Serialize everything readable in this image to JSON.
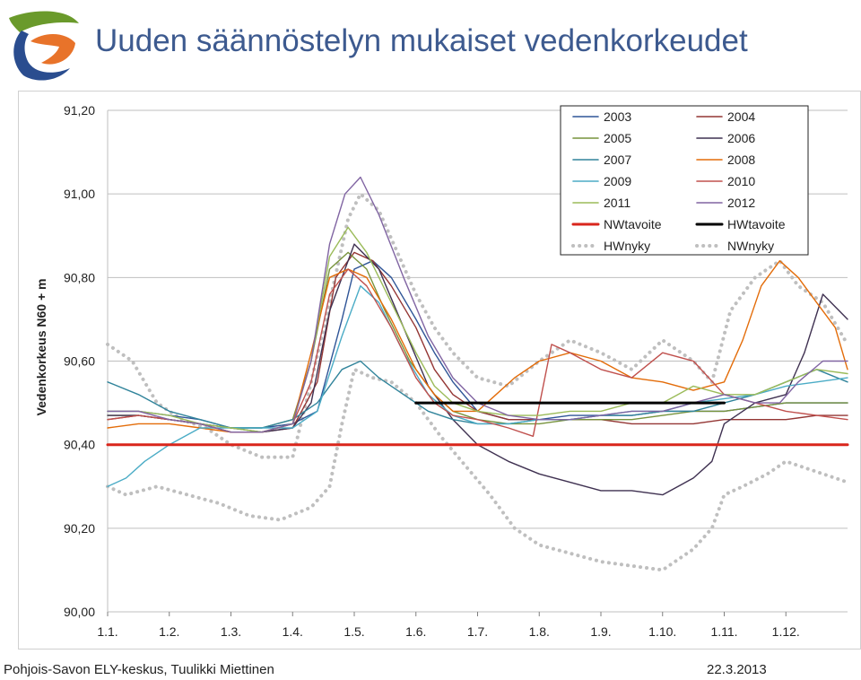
{
  "header": {
    "title": "Uuden säännöstelyn mukaiset vedenkorkeudet"
  },
  "footer": {
    "left": "Pohjois-Savon ELY-keskus, Tuulikki Miettinen",
    "right": "22.3.2013"
  },
  "logo": {
    "icon": "ely-logo-icon",
    "colors": [
      "#6a9a2b",
      "#e8732a",
      "#2a4d8f"
    ]
  },
  "chart_data": {
    "type": "line",
    "ylabel": "Vedenkorkeus N60 + m",
    "ylim": [
      90.0,
      91.2
    ],
    "yticks": [
      "90,00",
      "90,20",
      "90,40",
      "90,60",
      "90,80",
      "91,00",
      "91,20"
    ],
    "ytick_values": [
      90.0,
      90.2,
      90.4,
      90.6,
      90.8,
      91.0,
      91.2
    ],
    "xlim": [
      1,
      13
    ],
    "xticks": [
      "1.1.",
      "1.2.",
      "1.3.",
      "1.4.",
      "1.5.",
      "1.6.",
      "1.7.",
      "1.8.",
      "1.9.",
      "1.10.",
      "1.11.",
      "1.12."
    ],
    "xtick_values": [
      1,
      2,
      3,
      4,
      5,
      6,
      7,
      8,
      9,
      10,
      11,
      12
    ],
    "grid": true,
    "legend_position": "top-right",
    "series": [
      {
        "name": "2003",
        "color": "#2f5597",
        "style": "solid",
        "x": [
          1,
          1.5,
          2,
          2.5,
          3,
          3.5,
          4,
          4.4,
          4.8,
          5,
          5.3,
          5.6,
          6,
          6.3,
          6.6,
          7,
          7.5,
          8,
          8.5,
          9,
          9.5,
          10,
          10.5,
          11,
          11.5,
          12,
          12.5,
          13
        ],
        "y": [
          90.48,
          90.48,
          90.47,
          90.46,
          90.44,
          90.44,
          90.45,
          90.48,
          90.7,
          90.82,
          90.84,
          90.8,
          90.7,
          90.62,
          90.55,
          90.48,
          90.46,
          90.46,
          90.47,
          90.47,
          90.47,
          90.48,
          90.48,
          90.48,
          90.49,
          90.5,
          90.5,
          90.5
        ]
      },
      {
        "name": "2004",
        "color": "#943634",
        "style": "solid",
        "x": [
          1,
          1.5,
          2,
          2.5,
          3,
          3.5,
          4,
          4.4,
          4.7,
          5,
          5.3,
          5.6,
          6,
          6.3,
          6.6,
          7,
          7.5,
          8,
          8.5,
          9,
          9.5,
          10,
          10.5,
          11,
          11.5,
          12,
          12.5,
          13
        ],
        "y": [
          90.46,
          90.47,
          90.46,
          90.45,
          90.43,
          90.43,
          90.44,
          90.55,
          90.8,
          90.86,
          90.84,
          90.78,
          90.68,
          90.58,
          90.52,
          90.48,
          90.46,
          90.46,
          90.46,
          90.46,
          90.45,
          90.45,
          90.45,
          90.46,
          90.46,
          90.46,
          90.47,
          90.47
        ]
      },
      {
        "name": "2005",
        "color": "#77933c",
        "style": "solid",
        "x": [
          1,
          1.5,
          2,
          2.5,
          3,
          3.5,
          4,
          4.3,
          4.6,
          4.9,
          5.2,
          5.5,
          5.9,
          6.3,
          6.6,
          7,
          7.5,
          8,
          8.5,
          9,
          9.5,
          10,
          10.5,
          11,
          11.5,
          12,
          12.5,
          13
        ],
        "y": [
          90.47,
          90.47,
          90.46,
          90.45,
          90.44,
          90.44,
          90.46,
          90.6,
          90.82,
          90.86,
          90.82,
          90.72,
          90.6,
          90.52,
          90.48,
          90.46,
          90.45,
          90.45,
          90.46,
          90.46,
          90.46,
          90.47,
          90.48,
          90.48,
          90.49,
          90.5,
          90.5,
          90.5
        ]
      },
      {
        "name": "2006",
        "color": "#3f3151",
        "style": "solid",
        "x": [
          1,
          1.5,
          2,
          2.5,
          3,
          3.5,
          4,
          4.3,
          4.6,
          5,
          5.4,
          5.8,
          6.2,
          6.6,
          7,
          7.5,
          8,
          8.5,
          9,
          9.5,
          10,
          10.5,
          10.8,
          11,
          11.5,
          12,
          12.3,
          12.6,
          13
        ],
        "y": [
          90.47,
          90.47,
          90.46,
          90.45,
          90.44,
          90.43,
          90.44,
          90.5,
          90.72,
          90.88,
          90.82,
          90.68,
          90.54,
          90.46,
          90.4,
          90.36,
          90.33,
          90.31,
          90.29,
          90.29,
          90.28,
          90.32,
          90.36,
          90.45,
          90.5,
          90.52,
          90.62,
          90.76,
          90.7
        ]
      },
      {
        "name": "2007",
        "color": "#31849b",
        "style": "solid",
        "x": [
          1,
          1.5,
          2,
          2.5,
          3,
          3.5,
          4,
          4.4,
          4.8,
          5.1,
          5.4,
          5.8,
          6.2,
          6.6,
          7,
          7.5,
          8,
          8.5,
          9,
          9.5,
          10,
          10.5,
          11,
          11.5,
          12,
          12.5,
          13
        ],
        "y": [
          90.55,
          90.52,
          90.48,
          90.46,
          90.44,
          90.44,
          90.46,
          90.5,
          90.58,
          90.6,
          90.56,
          90.52,
          90.48,
          90.46,
          90.45,
          90.45,
          90.46,
          90.46,
          90.47,
          90.47,
          90.48,
          90.48,
          90.5,
          90.52,
          90.55,
          90.58,
          90.55
        ]
      },
      {
        "name": "2008",
        "color": "#e36c09",
        "style": "solid",
        "x": [
          1,
          1.5,
          2,
          2.5,
          3,
          3.5,
          4,
          4.3,
          4.6,
          4.9,
          5.2,
          5.6,
          6,
          6.3,
          6.6,
          7,
          7.3,
          7.6,
          8,
          8.5,
          9,
          9.5,
          10,
          10.5,
          11,
          11.3,
          11.6,
          11.9,
          12.2,
          12.5,
          12.8,
          13
        ],
        "y": [
          90.44,
          90.45,
          90.45,
          90.44,
          90.43,
          90.43,
          90.45,
          90.62,
          90.8,
          90.82,
          90.8,
          90.7,
          90.58,
          90.52,
          90.48,
          90.48,
          90.52,
          90.56,
          90.6,
          90.62,
          90.6,
          90.56,
          90.55,
          90.53,
          90.55,
          90.65,
          90.78,
          90.84,
          90.8,
          90.74,
          90.68,
          90.58
        ]
      },
      {
        "name": "2009",
        "color": "#4bacc6",
        "style": "solid",
        "x": [
          1,
          1.3,
          1.6,
          2,
          2.5,
          3,
          3.5,
          4,
          4.4,
          4.8,
          5.1,
          5.4,
          5.8,
          6.2,
          6.6,
          7,
          7.5,
          8,
          8.5,
          9,
          9.5,
          10,
          10.5,
          11,
          11.5,
          12,
          12.5,
          13
        ],
        "y": [
          90.3,
          90.32,
          90.36,
          90.4,
          90.44,
          90.44,
          90.44,
          90.44,
          90.48,
          90.66,
          90.78,
          90.74,
          90.62,
          90.52,
          90.47,
          90.45,
          90.45,
          90.46,
          90.46,
          90.47,
          90.48,
          90.48,
          90.5,
          90.51,
          90.52,
          90.54,
          90.55,
          90.56
        ]
      },
      {
        "name": "2010",
        "color": "#c0504d",
        "style": "solid",
        "x": [
          1,
          1.5,
          2,
          2.5,
          3,
          3.5,
          4,
          4.3,
          4.6,
          4.9,
          5.2,
          5.6,
          6,
          6.3,
          6.6,
          7,
          7.5,
          7.9,
          8.2,
          8.5,
          9,
          9.5,
          10,
          10.5,
          11,
          11.5,
          12,
          12.5,
          13
        ],
        "y": [
          90.46,
          90.47,
          90.46,
          90.45,
          90.43,
          90.43,
          90.45,
          90.55,
          90.76,
          90.82,
          90.78,
          90.68,
          90.56,
          90.5,
          90.47,
          90.46,
          90.44,
          90.42,
          90.64,
          90.62,
          90.58,
          90.56,
          90.62,
          90.6,
          90.52,
          90.5,
          90.48,
          90.47,
          90.46
        ]
      },
      {
        "name": "2011",
        "color": "#9bbb59",
        "style": "solid",
        "x": [
          1,
          1.5,
          2,
          2.5,
          3,
          3.5,
          4,
          4.3,
          4.6,
          4.9,
          5.2,
          5.6,
          6,
          6.3,
          6.6,
          7,
          7.5,
          8,
          8.5,
          9,
          9.5,
          10,
          10.5,
          11,
          11.5,
          12,
          12.5,
          13
        ],
        "y": [
          90.48,
          90.48,
          90.47,
          90.45,
          90.44,
          90.43,
          90.45,
          90.6,
          90.85,
          90.92,
          90.86,
          90.74,
          90.62,
          90.54,
          90.5,
          90.48,
          90.47,
          90.47,
          90.48,
          90.48,
          90.5,
          90.5,
          90.54,
          90.52,
          90.52,
          90.55,
          90.58,
          90.57
        ]
      },
      {
        "name": "2012",
        "color": "#8064a2",
        "style": "solid",
        "x": [
          1,
          1.5,
          2,
          2.5,
          3,
          3.5,
          4,
          4.3,
          4.6,
          4.85,
          5.1,
          5.4,
          5.8,
          6.2,
          6.6,
          7,
          7.5,
          8,
          8.5,
          9,
          9.5,
          10,
          10.5,
          11,
          11.5,
          11.9,
          12.2,
          12.6,
          13
        ],
        "y": [
          90.48,
          90.48,
          90.46,
          90.45,
          90.43,
          90.43,
          90.45,
          90.6,
          90.88,
          91.0,
          91.04,
          90.95,
          90.8,
          90.66,
          90.56,
          90.5,
          90.47,
          90.46,
          90.46,
          90.47,
          90.48,
          90.48,
          90.5,
          90.52,
          90.5,
          90.5,
          90.55,
          90.6,
          90.6
        ]
      },
      {
        "name": "NWtavoite",
        "color": "#d9261c",
        "style": "solid",
        "x": [
          1,
          13
        ],
        "y": [
          90.4,
          90.4
        ]
      },
      {
        "name": "HWtavoite",
        "color": "#000000",
        "style": "solid",
        "x": [
          6,
          11
        ],
        "y": [
          90.5,
          90.5
        ]
      },
      {
        "name": "HWnyky",
        "color": "#bfbfbf",
        "style": "dotted",
        "x": [
          1,
          1.4,
          1.8,
          2.2,
          2.6,
          3,
          3.5,
          4,
          4.3,
          4.6,
          4.9,
          5.1,
          5.4,
          5.7,
          6,
          6.3,
          6.6,
          7,
          7.5,
          8,
          8.5,
          9,
          9.5,
          10,
          10.5,
          10.8,
          11.1,
          11.5,
          11.9,
          12.2,
          12.6,
          13
        ],
        "y": [
          90.64,
          90.6,
          90.5,
          90.46,
          90.44,
          90.4,
          90.37,
          90.37,
          90.55,
          90.74,
          90.94,
          91.0,
          90.96,
          90.86,
          90.76,
          90.68,
          90.62,
          90.56,
          90.54,
          90.6,
          90.65,
          90.62,
          90.58,
          90.65,
          90.6,
          90.55,
          90.72,
          90.8,
          90.84,
          90.78,
          90.74,
          90.64
        ]
      },
      {
        "name": "NWnyky",
        "color": "#bfbfbf",
        "style": "dotted",
        "x": [
          1,
          1.3,
          1.8,
          2.3,
          2.8,
          3.3,
          3.8,
          4.3,
          4.6,
          4.8,
          5,
          5.3,
          5.6,
          6,
          6.4,
          6.8,
          7.2,
          7.6,
          8,
          8.5,
          9,
          9.5,
          10,
          10.5,
          10.8,
          11,
          11.3,
          11.7,
          12,
          12.4,
          12.8,
          13
        ],
        "y": [
          90.3,
          90.28,
          90.3,
          90.28,
          90.26,
          90.23,
          90.22,
          90.25,
          90.3,
          90.45,
          90.58,
          90.56,
          90.55,
          90.5,
          90.42,
          90.35,
          90.28,
          90.2,
          90.16,
          90.14,
          90.12,
          90.11,
          90.1,
          90.15,
          90.2,
          90.28,
          90.3,
          90.33,
          90.36,
          90.34,
          90.32,
          90.31
        ]
      }
    ]
  }
}
